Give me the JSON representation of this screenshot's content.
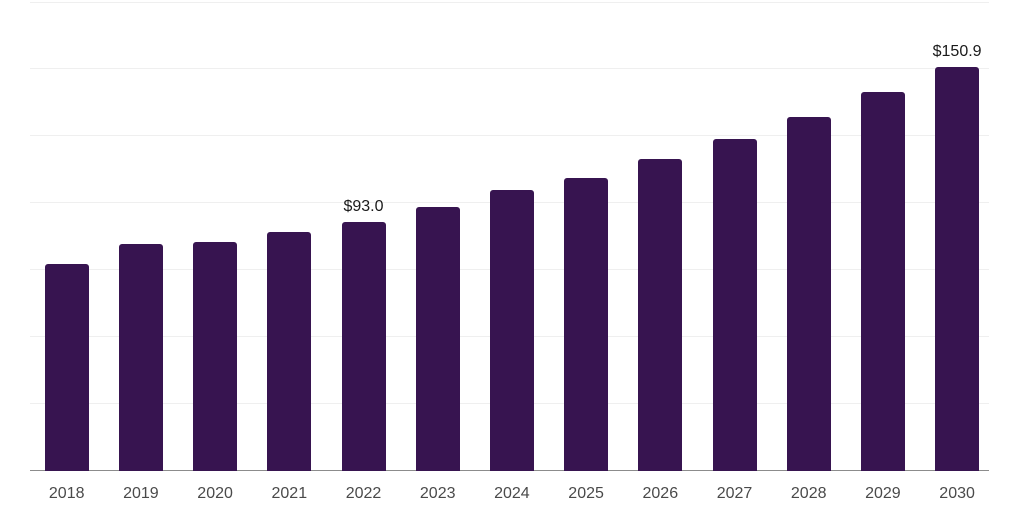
{
  "chart_data": {
    "type": "bar",
    "title": "",
    "xlabel": "",
    "ylabel": "",
    "categories": [
      "2018",
      "2019",
      "2020",
      "2021",
      "2022",
      "2023",
      "2024",
      "2025",
      "2026",
      "2027",
      "2028",
      "2029",
      "2030"
    ],
    "values": [
      77.0,
      84.5,
      85.2,
      89.0,
      93.0,
      98.4,
      104.6,
      109.4,
      116.2,
      123.7,
      131.9,
      141.4,
      150.9
    ],
    "data_labels": [
      {
        "category": "2022",
        "text": "$93.0"
      },
      {
        "category": "2030",
        "text": "$150.9"
      }
    ],
    "ylim": [
      0,
      175
    ],
    "grid_step": 25,
    "grid": "horizontal-only",
    "legend_position": "none",
    "y_axis_tick_labels_visible": false,
    "x_axis_line_visible": true
  },
  "colors": {
    "background": "#ffffff",
    "bar": "#371450",
    "gridline": "#efefef",
    "axis_line": "#8c8c8c",
    "tick_label": "#4a4a4a",
    "data_label": "#1a1a1a"
  }
}
